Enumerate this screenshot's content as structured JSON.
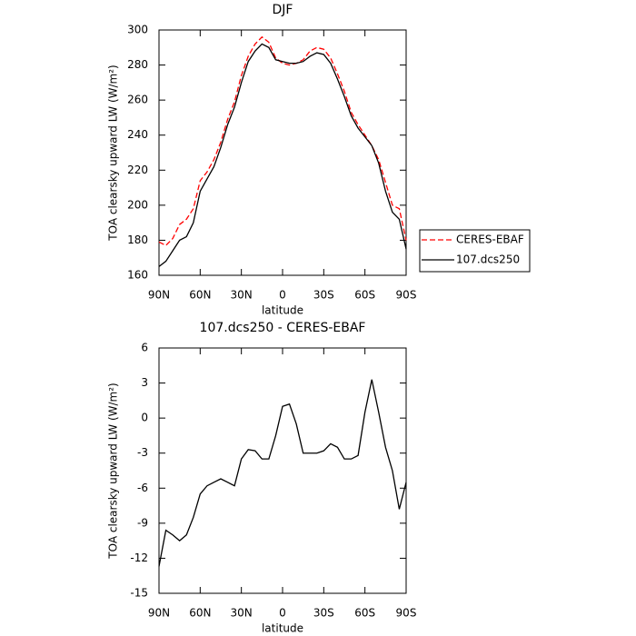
{
  "chart_data": [
    {
      "type": "line",
      "title": "DJF",
      "xlabel": "latitude",
      "ylabel": "TOA clearsky upward LW (W/m²)",
      "x": [
        90,
        85,
        80,
        75,
        70,
        65,
        60,
        55,
        50,
        45,
        40,
        35,
        30,
        25,
        20,
        15,
        10,
        5,
        0,
        -5,
        -10,
        -15,
        -20,
        -25,
        -30,
        -35,
        -40,
        -45,
        -50,
        -55,
        -60,
        -65,
        -70,
        -75,
        -80,
        -85,
        -90
      ],
      "xlim": [
        90,
        -90
      ],
      "xticks": [
        {
          "value": 90,
          "label": "90N"
        },
        {
          "value": 60,
          "label": "60N"
        },
        {
          "value": 30,
          "label": "30N"
        },
        0,
        {
          "value": -30,
          "label": "30S"
        },
        {
          "value": -60,
          "label": "60S"
        },
        {
          "value": -90,
          "label": "90S"
        }
      ],
      "ylim": [
        160,
        300
      ],
      "yticks": [
        160,
        180,
        200,
        220,
        240,
        260,
        280,
        300
      ],
      "legend": "right",
      "series": [
        {
          "name": "CERES-EBAF",
          "color": "#ff0000",
          "dash": true,
          "values": [
            179,
            177,
            181,
            189,
            192,
            198,
            214,
            219,
            226,
            236,
            249,
            259,
            274,
            285,
            292,
            296,
            293,
            284,
            281,
            280,
            281,
            283,
            288,
            290,
            289,
            284,
            275,
            265,
            253,
            246,
            240,
            234,
            226,
            213,
            200,
            198,
            180
          ]
        },
        {
          "name": "107.dcs250",
          "color": "#000000",
          "dash": false,
          "values": [
            165,
            168,
            174,
            180,
            182,
            190,
            208,
            215,
            222,
            233,
            246,
            256,
            270,
            282,
            288,
            292,
            290,
            283,
            282,
            281,
            281,
            282,
            285,
            287,
            286,
            281,
            272,
            262,
            251,
            244,
            239,
            234,
            224,
            208,
            196,
            192,
            175
          ]
        }
      ]
    },
    {
      "type": "line",
      "title": "107.dcs250 - CERES-EBAF",
      "xlabel": "latitude",
      "ylabel": "TOA clearsky upward LW (W/m²)",
      "x": [
        90,
        85,
        80,
        75,
        70,
        65,
        60,
        55,
        50,
        45,
        40,
        35,
        30,
        25,
        20,
        15,
        10,
        5,
        0,
        -5,
        -10,
        -15,
        -20,
        -25,
        -30,
        -35,
        -40,
        -45,
        -50,
        -55,
        -60,
        -65,
        -70,
        -75,
        -80,
        -85,
        -90
      ],
      "xlim": [
        90,
        -90
      ],
      "xticks": [
        {
          "value": 90,
          "label": "90N"
        },
        {
          "value": 60,
          "label": "60N"
        },
        {
          "value": 30,
          "label": "30N"
        },
        0,
        {
          "value": -30,
          "label": "30S"
        },
        {
          "value": -60,
          "label": "60S"
        },
        {
          "value": -90,
          "label": "90S"
        }
      ],
      "ylim": [
        -15,
        6
      ],
      "yticks": [
        -15,
        -12,
        -9,
        -6,
        -3,
        0,
        3,
        6
      ],
      "series": [
        {
          "color": "#000000",
          "dash": false,
          "values": [
            -12.7,
            -9.6,
            -10,
            -10.5,
            -10,
            -8.5,
            -6.5,
            -5.8,
            -5.5,
            -5.2,
            -5.5,
            -5.8,
            -3.5,
            -2.7,
            -2.8,
            -3.5,
            -3.5,
            -1.5,
            1.0,
            1.2,
            -0.5,
            -3.0,
            -3.0,
            -3.0,
            -2.8,
            -2.2,
            -2.5,
            -3.5,
            -3.5,
            -3.2,
            0.5,
            3.3,
            0.5,
            -2.5,
            -4.5,
            -7.8,
            -5.5
          ]
        }
      ]
    }
  ]
}
